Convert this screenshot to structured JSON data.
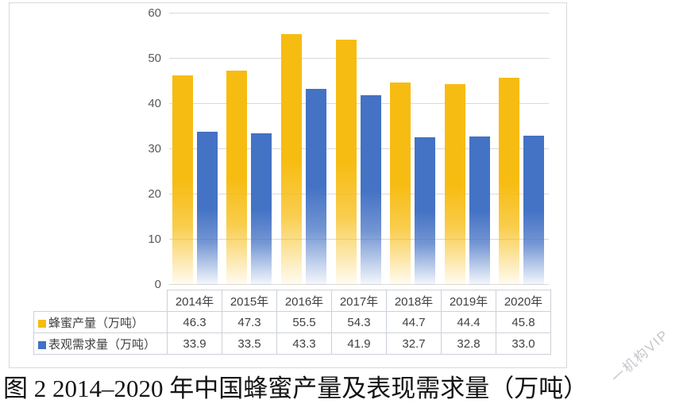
{
  "caption": {
    "text": "图 2 2014–2020 年中国蜂蜜产量及表现需求量（万吨）"
  },
  "watermark": {
    "text": "一机构VIP"
  },
  "chart_data": {
    "type": "bar",
    "title": "",
    "xlabel": "",
    "ylabel": "",
    "categories": [
      "2014年",
      "2015年",
      "2016年",
      "2017年",
      "2018年",
      "2019年",
      "2020年"
    ],
    "series": [
      {
        "name": "蜂蜜产量（万吨）",
        "color": "#F7BC11",
        "values": [
          46.3,
          47.3,
          55.5,
          54.3,
          44.7,
          44.4,
          45.8
        ]
      },
      {
        "name": "表观需求量（万吨）",
        "color": "#4472C4",
        "values": [
          33.9,
          33.5,
          43.3,
          41.9,
          32.7,
          32.8,
          33.0
        ]
      }
    ],
    "ylim": [
      0,
      60
    ],
    "yticks": [
      0,
      10,
      20,
      30,
      40,
      50,
      60
    ],
    "grid": true,
    "legend_position": "table-left",
    "value_decimals": 1
  }
}
